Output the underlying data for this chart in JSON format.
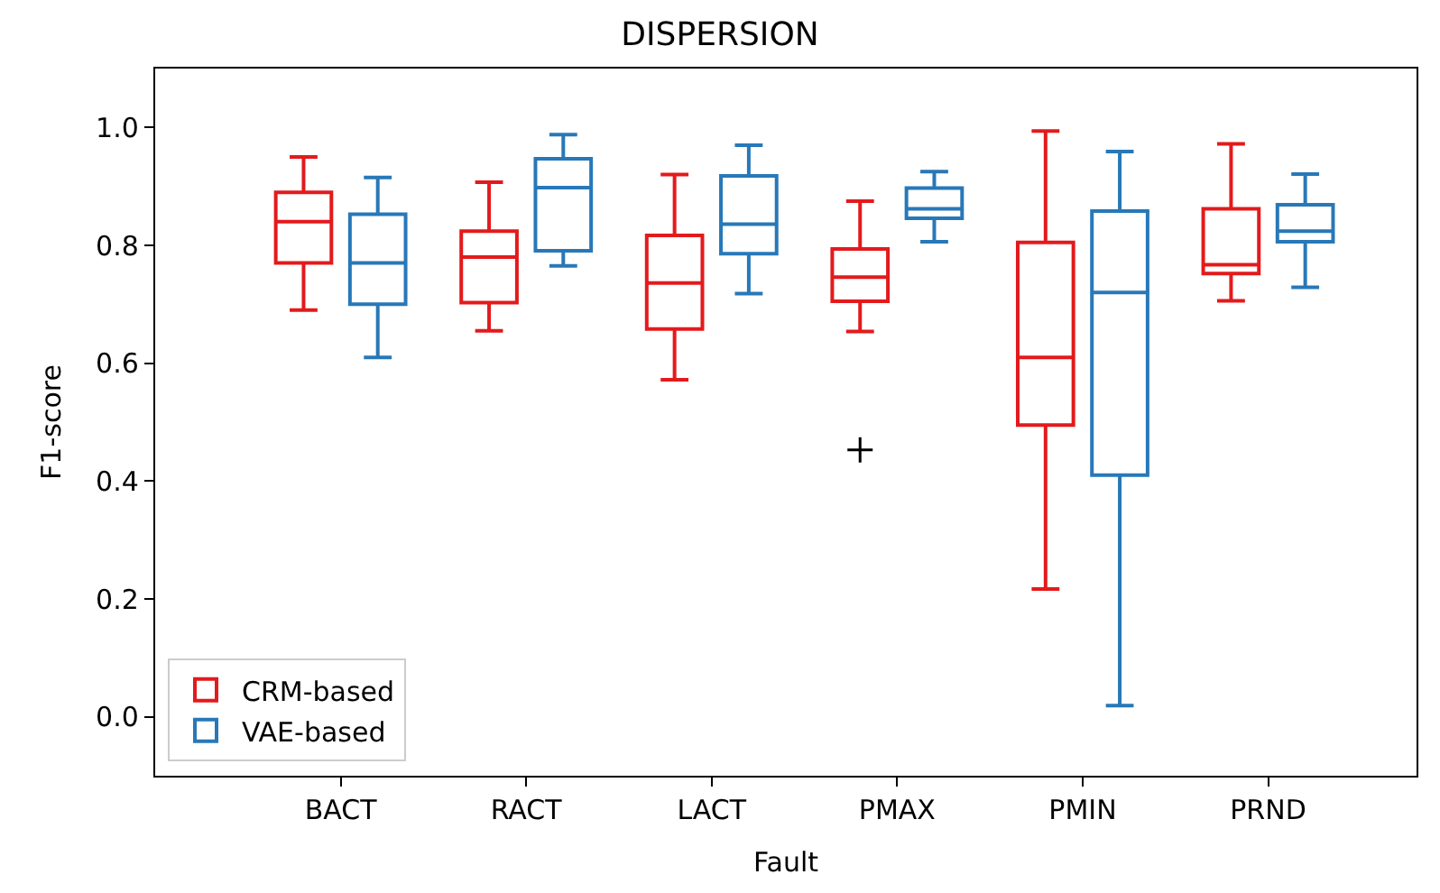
{
  "chart_data": {
    "type": "box",
    "title": "DISPERSION",
    "xlabel": "Fault",
    "ylabel": "F1-score",
    "categories": [
      "BACT",
      "RACT",
      "LACT",
      "PMAX",
      "PMIN",
      "PRND"
    ],
    "series": [
      {
        "name": "CRM-based",
        "color": "#e31a1c",
        "boxes": [
          {
            "low": 0.69,
            "q1": 0.77,
            "median": 0.84,
            "q3": 0.89,
            "high": 0.95
          },
          {
            "low": 0.655,
            "q1": 0.703,
            "median": 0.78,
            "q3": 0.824,
            "high": 0.907
          },
          {
            "low": 0.572,
            "q1": 0.658,
            "median": 0.736,
            "q3": 0.817,
            "high": 0.92
          },
          {
            "low": 0.654,
            "q1": 0.705,
            "median": 0.746,
            "q3": 0.794,
            "high": 0.875,
            "outliers": [
              0.453
            ]
          },
          {
            "low": 0.217,
            "q1": 0.495,
            "median": 0.61,
            "q3": 0.805,
            "high": 0.994
          },
          {
            "low": 0.706,
            "q1": 0.752,
            "median": 0.767,
            "q3": 0.862,
            "high": 0.972
          }
        ]
      },
      {
        "name": "VAE-based",
        "color": "#2878b8",
        "boxes": [
          {
            "low": 0.61,
            "q1": 0.7,
            "median": 0.77,
            "q3": 0.853,
            "high": 0.915
          },
          {
            "low": 0.765,
            "q1": 0.791,
            "median": 0.898,
            "q3": 0.947,
            "high": 0.988
          },
          {
            "low": 0.718,
            "q1": 0.786,
            "median": 0.836,
            "q3": 0.918,
            "high": 0.97
          },
          {
            "low": 0.806,
            "q1": 0.846,
            "median": 0.862,
            "q3": 0.897,
            "high": 0.925
          },
          {
            "low": 0.019,
            "q1": 0.41,
            "median": 0.72,
            "q3": 0.858,
            "high": 0.959
          },
          {
            "low": 0.729,
            "q1": 0.806,
            "median": 0.824,
            "q3": 0.869,
            "high": 0.921
          }
        ]
      }
    ],
    "ylim": [
      -0.1,
      1.1
    ],
    "yticks": [
      {
        "value": 0,
        "label": "0.0"
      },
      {
        "value": 0.2,
        "label": "0.2"
      },
      {
        "value": 0.4,
        "label": "0.4"
      },
      {
        "value": 0.6,
        "label": "0.6"
      },
      {
        "value": 0.8,
        "label": "0.8"
      },
      {
        "value": 1,
        "label": "1.0"
      }
    ],
    "legend": "bottom left"
  }
}
